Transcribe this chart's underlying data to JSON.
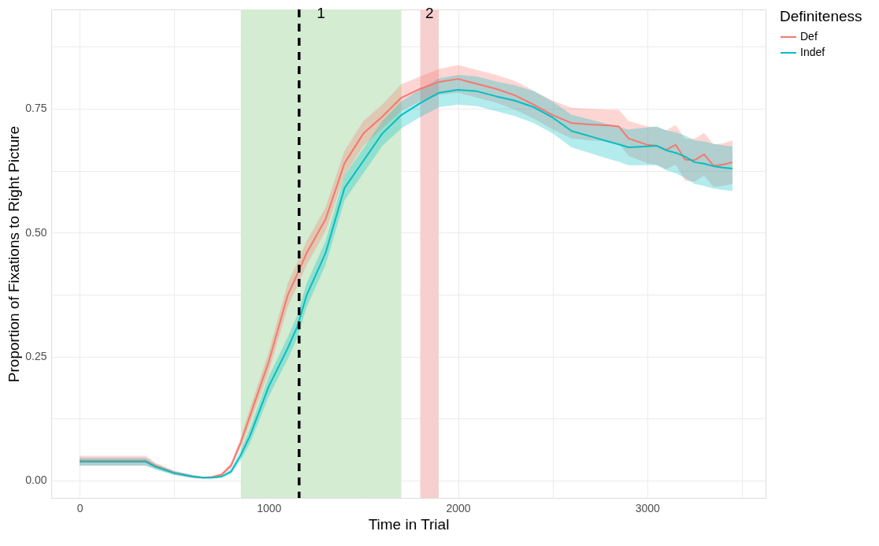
{
  "chart_data": {
    "type": "line",
    "xlabel": "Time in Trial",
    "ylabel": "Proportion of Fixations to Right Picture",
    "legend_title": "Definiteness",
    "legend": "right",
    "grid": true,
    "line_style": "solid",
    "marker": "none",
    "xlim": [
      -150,
      3625
    ],
    "ylim": [
      -0.035,
      0.95
    ],
    "xticks": [
      0,
      {
        "value": 500,
        "label": null
      },
      1000,
      {
        "value": 1500,
        "label": null
      },
      2000,
      {
        "value": 2500,
        "label": null
      },
      3000,
      {
        "value": 3500,
        "label": null
      }
    ],
    "yticks": [
      {
        "value": 0,
        "label": "0.00"
      },
      {
        "value": 0.125,
        "label": null
      },
      {
        "value": 0.25,
        "label": "0.25"
      },
      {
        "value": 0.375,
        "label": null
      },
      {
        "value": 0.5,
        "label": "0.50"
      },
      {
        "value": 0.625,
        "label": null
      },
      {
        "value": 0.75,
        "label": "0.75"
      },
      {
        "value": 0.875,
        "label": null
      }
    ],
    "x": [
      0,
      350,
      400,
      500,
      600,
      650,
      700,
      750,
      800,
      850,
      900,
      1000,
      1100,
      1150,
      1200,
      1300,
      1400,
      1500,
      1600,
      1700,
      1800,
      1900,
      2000,
      2100,
      2200,
      2300,
      2400,
      2500,
      2600,
      2700,
      2800,
      2850,
      2900,
      3000,
      3050,
      3100,
      3150,
      3200,
      3250,
      3300,
      3350,
      3400,
      3450
    ],
    "series": [
      {
        "name": "Def",
        "color": "#f8766d",
        "values": [
          0.04,
          0.04,
          0.03,
          0.016,
          0.008,
          0.006,
          0.007,
          0.012,
          0.03,
          0.075,
          0.13,
          0.24,
          0.374,
          0.416,
          0.459,
          0.527,
          0.64,
          0.7,
          0.734,
          0.772,
          0.79,
          0.804,
          0.81,
          0.8,
          0.79,
          0.777,
          0.758,
          0.737,
          0.721,
          0.718,
          0.716,
          0.714,
          0.69,
          0.677,
          0.675,
          0.667,
          0.677,
          0.647,
          0.646,
          0.658,
          0.635,
          0.637,
          0.642
        ],
        "lower": [
          0.03,
          0.03,
          0.024,
          0.012,
          0.005,
          0.004,
          0.005,
          0.009,
          0.024,
          0.065,
          0.115,
          0.22,
          0.35,
          0.392,
          0.435,
          0.503,
          0.615,
          0.675,
          0.71,
          0.745,
          0.765,
          0.778,
          0.782,
          0.772,
          0.762,
          0.748,
          0.73,
          0.708,
          0.69,
          0.686,
          0.684,
          0.68,
          0.655,
          0.64,
          0.637,
          0.628,
          0.637,
          0.605,
          0.603,
          0.615,
          0.592,
          0.594,
          0.598
        ],
        "upper": [
          0.05,
          0.05,
          0.036,
          0.02,
          0.011,
          0.008,
          0.009,
          0.015,
          0.036,
          0.085,
          0.145,
          0.26,
          0.398,
          0.44,
          0.483,
          0.551,
          0.665,
          0.725,
          0.758,
          0.799,
          0.815,
          0.83,
          0.838,
          0.828,
          0.818,
          0.806,
          0.786,
          0.766,
          0.752,
          0.75,
          0.748,
          0.748,
          0.725,
          0.714,
          0.713,
          0.706,
          0.717,
          0.689,
          0.689,
          0.701,
          0.678,
          0.68,
          0.686
        ]
      },
      {
        "name": "Indef",
        "color": "#00bfc4",
        "values": [
          0.038,
          0.038,
          0.028,
          0.015,
          0.008,
          0.006,
          0.006,
          0.008,
          0.018,
          0.05,
          0.09,
          0.19,
          0.267,
          0.31,
          0.374,
          0.459,
          0.59,
          0.645,
          0.7,
          0.737,
          0.761,
          0.782,
          0.788,
          0.785,
          0.775,
          0.766,
          0.753,
          0.732,
          0.705,
          0.694,
          0.683,
          0.678,
          0.672,
          0.674,
          0.675,
          0.666,
          0.661,
          0.653,
          0.642,
          0.639,
          0.634,
          0.631,
          0.629
        ],
        "lower": [
          0.03,
          0.03,
          0.022,
          0.011,
          0.005,
          0.004,
          0.004,
          0.006,
          0.013,
          0.04,
          0.075,
          0.17,
          0.245,
          0.287,
          0.35,
          0.435,
          0.565,
          0.62,
          0.675,
          0.71,
          0.733,
          0.753,
          0.758,
          0.755,
          0.745,
          0.735,
          0.721,
          0.7,
          0.672,
          0.66,
          0.648,
          0.643,
          0.636,
          0.636,
          0.636,
          0.626,
          0.62,
          0.61,
          0.598,
          0.594,
          0.589,
          0.586,
          0.584
        ],
        "upper": [
          0.046,
          0.046,
          0.034,
          0.019,
          0.011,
          0.008,
          0.008,
          0.01,
          0.023,
          0.06,
          0.105,
          0.21,
          0.289,
          0.333,
          0.398,
          0.483,
          0.615,
          0.67,
          0.725,
          0.764,
          0.789,
          0.811,
          0.818,
          0.815,
          0.805,
          0.797,
          0.785,
          0.764,
          0.738,
          0.728,
          0.718,
          0.713,
          0.708,
          0.712,
          0.714,
          0.706,
          0.702,
          0.696,
          0.686,
          0.684,
          0.679,
          0.676,
          0.674
        ]
      }
    ],
    "bands": [
      {
        "axis": "x",
        "from": 852,
        "to": 1700,
        "color": "#d3ecd2",
        "label": "1"
      },
      {
        "axis": "x",
        "from": 1800,
        "to": 1898,
        "color": "#f6cfcf",
        "label": "2"
      }
    ],
    "ref_lines": [
      {
        "axis": "x",
        "value": 1160,
        "line_style": "dashed",
        "color": "#000000"
      }
    ]
  }
}
